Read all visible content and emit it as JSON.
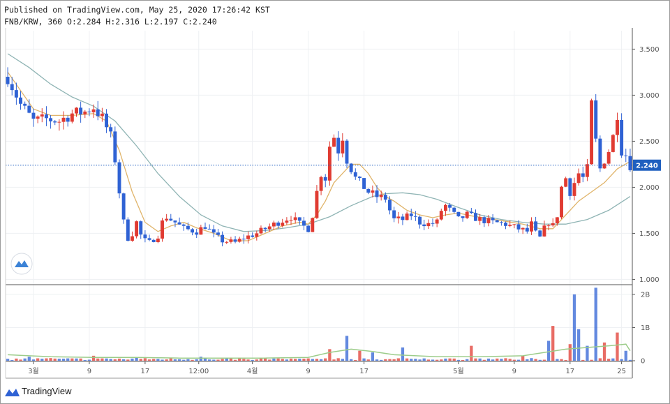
{
  "header": {
    "published": "Published on TradingView.com, May 25, 2020 17:26:42 KST",
    "symbol": "FNB/KRW",
    "interval": "360",
    "ohlc": "O:2.284 H:2.316 L:2.197 C:2.240"
  },
  "branding": {
    "name": "TradingView",
    "icon": "tradingview-logo-icon"
  },
  "colors": {
    "up": "#e03b32",
    "down": "#2f62d4",
    "ma_fast": "#e0b46a",
    "ma_slow": "#8fb4b4",
    "last_price": "#1f5fbf",
    "volume_ma": "#9ccc8a"
  },
  "chart_data": [
    {
      "type": "candlestick",
      "panel": "price",
      "y_ticks": [
        "3.500",
        "3.000",
        "2.500",
        "2.000",
        "1.500",
        "1.000"
      ],
      "y_tick_values": [
        3.5,
        3.0,
        2.5,
        2.0,
        1.5,
        1.0
      ],
      "ylim": [
        0.95,
        3.7
      ],
      "last_price": 2.24,
      "last_price_label": "2.240",
      "close_path": [
        [
          0,
          3.2
        ],
        [
          3,
          2.9
        ],
        [
          6,
          2.72
        ],
        [
          9,
          2.74
        ],
        [
          12,
          2.72
        ],
        [
          15,
          2.8
        ],
        [
          18,
          2.82
        ],
        [
          20,
          2.87
        ],
        [
          22,
          2.75
        ],
        [
          24,
          2.55
        ],
        [
          25,
          2.3
        ],
        [
          26,
          1.95
        ],
        [
          27,
          1.62
        ],
        [
          28,
          1.45
        ],
        [
          29,
          1.5
        ],
        [
          30,
          1.62
        ],
        [
          31,
          1.48
        ],
        [
          32,
          1.42
        ],
        [
          33,
          1.4
        ],
        [
          35,
          1.48
        ],
        [
          36,
          1.62
        ],
        [
          37,
          1.68
        ],
        [
          39,
          1.62
        ],
        [
          41,
          1.55
        ],
        [
          44,
          1.52
        ],
        [
          46,
          1.58
        ],
        [
          48,
          1.48
        ],
        [
          50,
          1.42
        ],
        [
          53,
          1.4
        ],
        [
          55,
          1.45
        ],
        [
          58,
          1.5
        ],
        [
          60,
          1.55
        ],
        [
          63,
          1.62
        ],
        [
          66,
          1.68
        ],
        [
          68,
          1.6
        ],
        [
          70,
          1.55
        ],
        [
          71,
          1.7
        ],
        [
          72,
          1.95
        ],
        [
          73,
          2.15
        ],
        [
          74,
          2.1
        ],
        [
          75,
          2.45
        ],
        [
          76,
          2.55
        ],
        [
          77,
          2.4
        ],
        [
          78,
          2.55
        ],
        [
          79,
          2.3
        ],
        [
          80,
          2.2
        ],
        [
          81,
          2.1
        ],
        [
          82,
          2.05
        ],
        [
          84,
          1.95
        ],
        [
          86,
          1.9
        ],
        [
          88,
          1.88
        ],
        [
          89,
          1.75
        ],
        [
          90,
          1.65
        ],
        [
          92,
          1.65
        ],
        [
          94,
          1.7
        ],
        [
          96,
          1.62
        ],
        [
          98,
          1.6
        ],
        [
          100,
          1.62
        ],
        [
          101,
          1.75
        ],
        [
          102,
          1.8
        ],
        [
          103,
          1.75
        ],
        [
          105,
          1.65
        ],
        [
          107,
          1.7
        ],
        [
          110,
          1.65
        ],
        [
          113,
          1.62
        ],
        [
          116,
          1.6
        ],
        [
          119,
          1.55
        ],
        [
          121,
          1.52
        ],
        [
          122,
          1.6
        ],
        [
          123,
          1.5
        ],
        [
          124,
          1.45
        ],
        [
          125,
          1.55
        ],
        [
          126,
          1.62
        ],
        [
          127,
          1.58
        ],
        [
          128,
          1.7
        ],
        [
          129,
          2.0
        ],
        [
          130,
          2.1
        ],
        [
          131,
          1.95
        ],
        [
          132,
          2.05
        ],
        [
          133,
          2.15
        ],
        [
          134,
          2.1
        ],
        [
          135,
          2.2
        ],
        [
          136,
          2.9
        ],
        [
          137,
          2.5
        ],
        [
          138,
          2.2
        ],
        [
          139,
          2.3
        ],
        [
          140,
          2.4
        ],
        [
          141,
          2.55
        ],
        [
          142,
          2.8
        ],
        [
          143,
          2.4
        ],
        [
          144,
          2.35
        ],
        [
          145,
          2.24
        ]
      ],
      "ma_fast": [
        [
          0,
          3.25
        ],
        [
          3,
          3.05
        ],
        [
          6,
          2.85
        ],
        [
          10,
          2.78
        ],
        [
          15,
          2.78
        ],
        [
          20,
          2.8
        ],
        [
          23,
          2.72
        ],
        [
          26,
          2.4
        ],
        [
          29,
          1.95
        ],
        [
          32,
          1.62
        ],
        [
          35,
          1.52
        ],
        [
          38,
          1.58
        ],
        [
          41,
          1.62
        ],
        [
          44,
          1.56
        ],
        [
          48,
          1.5
        ],
        [
          52,
          1.42
        ],
        [
          56,
          1.42
        ],
        [
          60,
          1.5
        ],
        [
          64,
          1.58
        ],
        [
          68,
          1.62
        ],
        [
          70,
          1.6
        ],
        [
          72,
          1.7
        ],
        [
          74,
          1.85
        ],
        [
          76,
          2.05
        ],
        [
          78,
          2.15
        ],
        [
          80,
          2.25
        ],
        [
          82,
          2.25
        ],
        [
          84,
          2.15
        ],
        [
          86,
          2.0
        ],
        [
          88,
          1.9
        ],
        [
          90,
          1.85
        ],
        [
          93,
          1.75
        ],
        [
          96,
          1.7
        ],
        [
          99,
          1.67
        ],
        [
          102,
          1.7
        ],
        [
          105,
          1.72
        ],
        [
          108,
          1.69
        ],
        [
          112,
          1.66
        ],
        [
          116,
          1.63
        ],
        [
          120,
          1.6
        ],
        [
          124,
          1.55
        ],
        [
          127,
          1.55
        ],
        [
          130,
          1.7
        ],
        [
          133,
          1.85
        ],
        [
          136,
          1.95
        ],
        [
          139,
          2.05
        ],
        [
          142,
          2.2
        ],
        [
          145,
          2.28
        ]
      ],
      "ma_slow": [
        [
          0,
          3.45
        ],
        [
          5,
          3.3
        ],
        [
          10,
          3.12
        ],
        [
          15,
          2.98
        ],
        [
          20,
          2.88
        ],
        [
          25,
          2.72
        ],
        [
          30,
          2.45
        ],
        [
          35,
          2.15
        ],
        [
          40,
          1.9
        ],
        [
          45,
          1.7
        ],
        [
          50,
          1.58
        ],
        [
          55,
          1.52
        ],
        [
          60,
          1.53
        ],
        [
          65,
          1.56
        ],
        [
          70,
          1.6
        ],
        [
          75,
          1.68
        ],
        [
          80,
          1.8
        ],
        [
          85,
          1.9
        ],
        [
          88,
          1.93
        ],
        [
          92,
          1.94
        ],
        [
          96,
          1.92
        ],
        [
          100,
          1.87
        ],
        [
          105,
          1.78
        ],
        [
          110,
          1.7
        ],
        [
          115,
          1.65
        ],
        [
          120,
          1.62
        ],
        [
          125,
          1.6
        ],
        [
          130,
          1.6
        ],
        [
          135,
          1.65
        ],
        [
          140,
          1.75
        ],
        [
          145,
          1.9
        ]
      ]
    },
    {
      "type": "bar",
      "panel": "volume",
      "y_ticks": [
        "2B",
        "1B",
        "0"
      ],
      "y_tick_values": [
        2000000000,
        1000000000,
        0
      ],
      "ylim": [
        0,
        2250000000
      ],
      "spikes": [
        [
          5,
          0.12
        ],
        [
          10,
          0.08
        ],
        [
          20,
          0.15
        ],
        [
          30,
          0.1
        ],
        [
          45,
          0.12
        ],
        [
          60,
          0.08
        ],
        [
          75,
          0.35
        ],
        [
          79,
          0.75
        ],
        [
          82,
          0.3
        ],
        [
          85,
          0.25
        ],
        [
          92,
          0.4
        ],
        [
          108,
          0.45
        ],
        [
          120,
          0.15
        ],
        [
          126,
          0.6
        ],
        [
          127,
          1.05
        ],
        [
          131,
          0.5
        ],
        [
          132,
          2.0
        ],
        [
          133,
          0.95
        ],
        [
          135,
          0.45
        ],
        [
          137,
          2.2
        ],
        [
          139,
          0.55
        ],
        [
          142,
          0.85
        ],
        [
          144,
          0.3
        ]
      ],
      "ma": [
        [
          0,
          0.18
        ],
        [
          5,
          0.15
        ],
        [
          10,
          0.12
        ],
        [
          20,
          0.1
        ],
        [
          30,
          0.1
        ],
        [
          40,
          0.08
        ],
        [
          60,
          0.08
        ],
        [
          70,
          0.1
        ],
        [
          75,
          0.25
        ],
        [
          80,
          0.35
        ],
        [
          85,
          0.28
        ],
        [
          90,
          0.18
        ],
        [
          100,
          0.12
        ],
        [
          110,
          0.12
        ],
        [
          120,
          0.15
        ],
        [
          125,
          0.25
        ],
        [
          130,
          0.35
        ],
        [
          135,
          0.4
        ],
        [
          140,
          0.45
        ],
        [
          144,
          0.5
        ],
        [
          145,
          0.3
        ]
      ]
    }
  ],
  "x_axis": {
    "labels": [
      "3월",
      "9",
      "17",
      "12:00",
      "4월",
      "9",
      "17",
      "5월",
      "9",
      "17",
      "25"
    ],
    "label_bars": [
      6,
      19,
      32,
      44.5,
      57,
      70,
      83,
      105,
      118,
      131,
      143
    ]
  }
}
